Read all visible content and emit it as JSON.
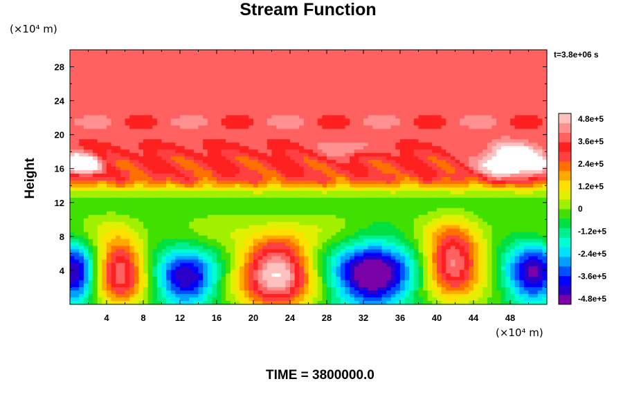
{
  "chart_data": {
    "type": "heatmap",
    "title": "Stream Function",
    "xlabel": "",
    "ylabel": "Height",
    "x_unit": "(×10⁴ m)",
    "y_unit": "(×10⁴ m)",
    "xlim": [
      0,
      52
    ],
    "ylim": [
      0,
      30
    ],
    "x_ticks": [
      4,
      8,
      12,
      16,
      20,
      24,
      28,
      32,
      36,
      40,
      44,
      48
    ],
    "y_ticks": [
      4,
      8,
      12,
      16,
      20,
      24,
      28
    ],
    "time_stamp": "t=3.8e+06 s",
    "footer": "TIME = 3800000.0",
    "colorbar": {
      "min": -480000,
      "max": 480000,
      "labels": [
        "4.8e+5",
        "3.6e+5",
        "2.4e+5",
        "1.2e+5",
        "0",
        "-1.2e+5",
        "-2.4e+5",
        "-3.6e+5",
        "-4.8e+5"
      ],
      "colors": [
        "#7a00a8",
        "#2a00c8",
        "#0000ff",
        "#0050ff",
        "#00a0ff",
        "#00e0ff",
        "#00ffd0",
        "#00f090",
        "#00e040",
        "#40e000",
        "#a0f000",
        "#e0f000",
        "#ffe000",
        "#ffa800",
        "#ff7000",
        "#ff4040",
        "#ff2020",
        "#ff6060",
        "#ff9090",
        "#ffc0c0"
      ]
    },
    "background_value": 360000,
    "features": [
      {
        "label": "vortex",
        "x": 0.5,
        "y": 3.5,
        "sx": 2.2,
        "sy": 3.5,
        "amp": -420000
      },
      {
        "label": "vortex",
        "x": 5.5,
        "y": 4.0,
        "sx": 2.6,
        "sy": 3.8,
        "amp": 400000
      },
      {
        "label": "vortex",
        "x": 12.7,
        "y": 3.0,
        "sx": 3.2,
        "sy": 3.2,
        "amp": -420000
      },
      {
        "label": "vortex",
        "x": 22.5,
        "y": 3.8,
        "sx": 3.8,
        "sy": 4.2,
        "amp": 520000
      },
      {
        "label": "vortex",
        "x": 33.0,
        "y": 3.3,
        "sx": 4.4,
        "sy": 3.6,
        "amp": -520000
      },
      {
        "label": "vortex",
        "x": 41.8,
        "y": 5.0,
        "sx": 3.0,
        "sy": 3.8,
        "amp": 440000
      },
      {
        "label": "vortex",
        "x": 50.5,
        "y": 3.5,
        "sx": 3.0,
        "sy": 3.5,
        "amp": -420000
      },
      {
        "label": "blob",
        "x": 1.0,
        "y": 16.5,
        "sx": 2.2,
        "sy": 1.2,
        "amp": 380000
      },
      {
        "label": "blob",
        "x": 48.5,
        "y": 16.8,
        "sx": 3.6,
        "sy": 1.8,
        "amp": 420000
      },
      {
        "label": "blob",
        "x": 30.0,
        "y": 18.3,
        "sx": 3.0,
        "sy": 1.0,
        "amp": 120000
      }
    ]
  }
}
